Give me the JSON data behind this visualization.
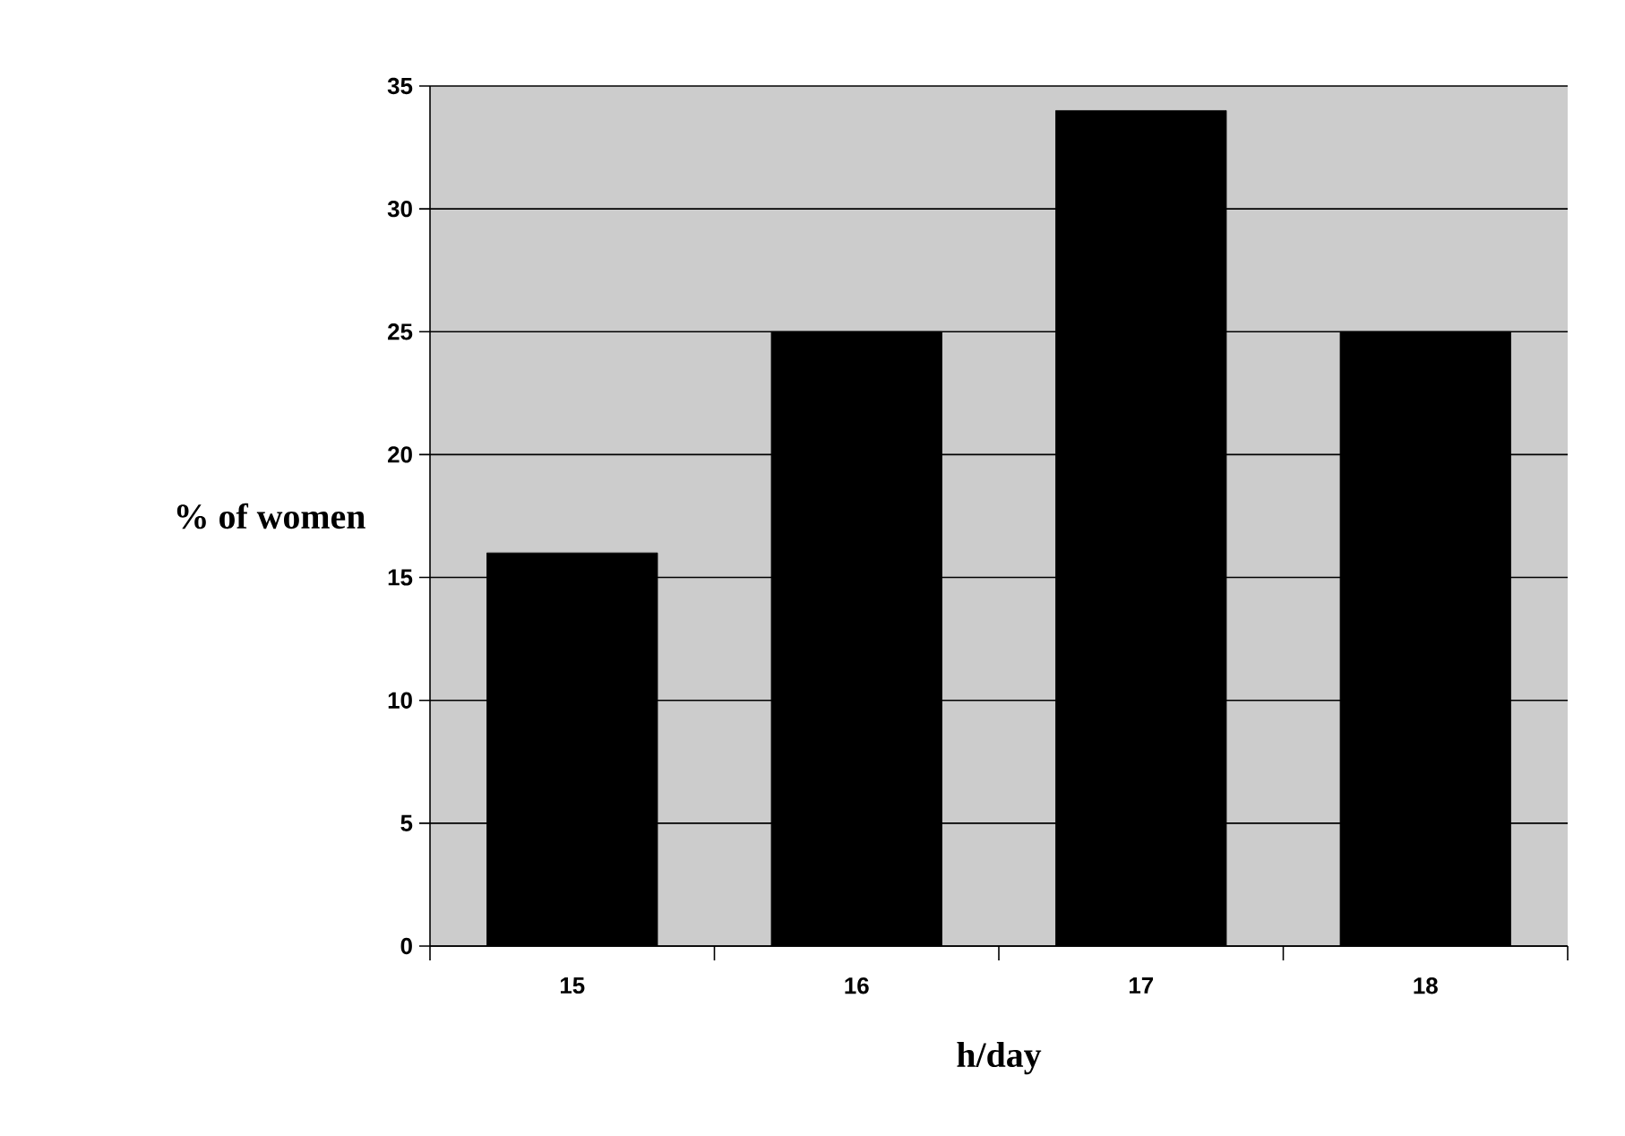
{
  "chart_data": {
    "type": "bar",
    "xlabel": "h/day",
    "ylabel": "% of women",
    "categories": [
      "15",
      "16",
      "17",
      "18"
    ],
    "values": [
      16,
      25,
      34,
      25
    ],
    "color": "#000000",
    "ylim": [
      0,
      35
    ],
    "yticks": [
      0,
      5,
      10,
      15,
      20,
      25,
      30,
      35
    ],
    "grid": "y"
  }
}
